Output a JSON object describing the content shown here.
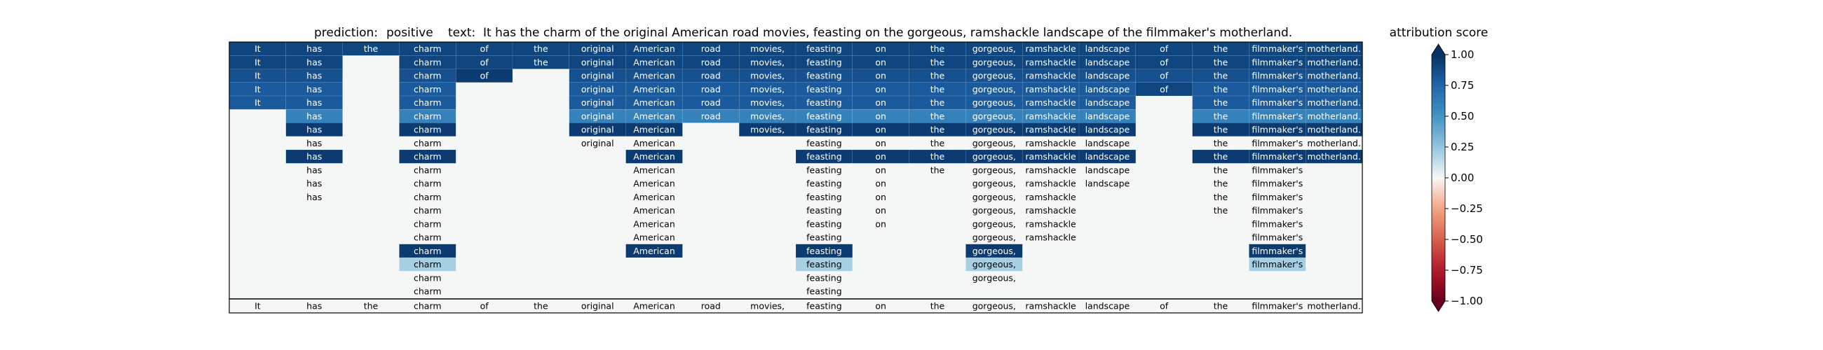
{
  "chart_data": {
    "type": "heatmap",
    "title": {
      "prediction_label": "prediction:",
      "prediction_value": "positive",
      "text_label": "text:",
      "text_value": "It has the charm of the original American road movies, feasting on the gorgeous, ramshackle landscape of the filmmaker's motherland."
    },
    "tokens": [
      "It",
      "has",
      "the",
      "charm",
      "of",
      "the",
      "original",
      "American",
      "road",
      "movies,",
      "feasting",
      "on",
      "the",
      "gorgeous,",
      "ramshackle",
      "landscape",
      "of",
      "the",
      "filmmaker's",
      "motherland."
    ],
    "rows": [
      {
        "visible": [
          1,
          1,
          1,
          1,
          1,
          1,
          1,
          1,
          1,
          1,
          1,
          1,
          1,
          1,
          1,
          1,
          1,
          1,
          1,
          1
        ],
        "scores": [
          0.9,
          0.9,
          0.9,
          0.9,
          0.9,
          0.9,
          0.9,
          0.9,
          0.9,
          0.9,
          0.9,
          0.9,
          0.9,
          0.9,
          0.9,
          0.9,
          0.9,
          0.9,
          0.9,
          0.9
        ]
      },
      {
        "visible": [
          1,
          1,
          0,
          1,
          1,
          1,
          1,
          1,
          1,
          1,
          1,
          1,
          1,
          1,
          1,
          1,
          1,
          1,
          1,
          1
        ],
        "scores": [
          0.9,
          0.9,
          0,
          0.9,
          0.9,
          0.9,
          0.9,
          0.9,
          0.9,
          0.9,
          0.9,
          0.9,
          0.9,
          0.9,
          0.9,
          0.9,
          0.9,
          0.9,
          0.9,
          0.9
        ]
      },
      {
        "visible": [
          1,
          1,
          0,
          1,
          1,
          0,
          1,
          1,
          1,
          1,
          1,
          1,
          1,
          1,
          1,
          1,
          1,
          1,
          1,
          1
        ],
        "scores": [
          0.85,
          0.85,
          0,
          0.85,
          0.95,
          0,
          0.85,
          0.85,
          0.85,
          0.85,
          0.85,
          0.85,
          0.85,
          0.85,
          0.85,
          0.85,
          0.85,
          0.85,
          0.85,
          0.85
        ]
      },
      {
        "visible": [
          1,
          1,
          0,
          1,
          0,
          0,
          1,
          1,
          1,
          1,
          1,
          1,
          1,
          1,
          1,
          1,
          1,
          1,
          1,
          1
        ],
        "scores": [
          0.8,
          0.8,
          0,
          0.8,
          0,
          0,
          0.8,
          0.8,
          0.8,
          0.8,
          0.8,
          0.8,
          0.8,
          0.8,
          0.8,
          0.8,
          0.9,
          0.8,
          0.8,
          0.8
        ]
      },
      {
        "visible": [
          1,
          1,
          0,
          1,
          0,
          0,
          1,
          1,
          1,
          1,
          1,
          1,
          1,
          1,
          1,
          1,
          0,
          1,
          1,
          1
        ],
        "scores": [
          0.8,
          0.8,
          0,
          0.8,
          0,
          0,
          0.8,
          0.8,
          0.8,
          0.8,
          0.8,
          0.8,
          0.8,
          0.8,
          0.8,
          0.8,
          0,
          0.8,
          0.8,
          0.8
        ]
      },
      {
        "visible": [
          0,
          1,
          0,
          1,
          0,
          0,
          1,
          1,
          1,
          1,
          1,
          1,
          1,
          1,
          1,
          1,
          0,
          1,
          1,
          1
        ],
        "scores": [
          0,
          0.6,
          0,
          0.6,
          0,
          0,
          0.6,
          0.6,
          0.6,
          0.6,
          0.6,
          0.6,
          0.6,
          0.6,
          0.6,
          0.6,
          0,
          0.6,
          0.6,
          0.6
        ]
      },
      {
        "visible": [
          0,
          1,
          0,
          1,
          0,
          0,
          1,
          1,
          0,
          1,
          1,
          1,
          1,
          1,
          1,
          1,
          0,
          1,
          1,
          1
        ],
        "scores": [
          0,
          0.95,
          0,
          0.95,
          0,
          0,
          0.95,
          0.95,
          0,
          0.95,
          0.95,
          0.95,
          0.95,
          0.95,
          0.95,
          0.95,
          0,
          0.95,
          0.95,
          0.95
        ]
      },
      {
        "visible": [
          0,
          1,
          0,
          1,
          0,
          0,
          1,
          1,
          0,
          0,
          1,
          1,
          1,
          1,
          1,
          1,
          0,
          1,
          1,
          1
        ],
        "scores": [
          0,
          0,
          0,
          0,
          0,
          0,
          0,
          0,
          0,
          0,
          0,
          0,
          0,
          0,
          0,
          0,
          0,
          0,
          0,
          0
        ]
      },
      {
        "visible": [
          0,
          1,
          0,
          1,
          0,
          0,
          0,
          1,
          0,
          0,
          1,
          1,
          1,
          1,
          1,
          1,
          0,
          1,
          1,
          1
        ],
        "scores": [
          0,
          0.95,
          0,
          0.95,
          0,
          0,
          0,
          0.95,
          0,
          0,
          0.95,
          0.95,
          0.95,
          0.95,
          0.95,
          0.95,
          0,
          0.95,
          0.95,
          0.95
        ]
      },
      {
        "visible": [
          0,
          1,
          0,
          1,
          0,
          0,
          0,
          1,
          0,
          0,
          1,
          1,
          1,
          1,
          1,
          1,
          0,
          1,
          1,
          0
        ],
        "scores": [
          0,
          0,
          0,
          0,
          0,
          0,
          0,
          0,
          0,
          0,
          0,
          0,
          0,
          0,
          0,
          0,
          0,
          0,
          0,
          0
        ]
      },
      {
        "visible": [
          0,
          1,
          0,
          1,
          0,
          0,
          0,
          1,
          0,
          0,
          1,
          1,
          0,
          1,
          1,
          1,
          0,
          1,
          1,
          0
        ],
        "scores": [
          0,
          0,
          0,
          0,
          0,
          0,
          0,
          0,
          0,
          0,
          0,
          0,
          0,
          0,
          0,
          0,
          0,
          0,
          0,
          0
        ]
      },
      {
        "visible": [
          0,
          1,
          0,
          1,
          0,
          0,
          0,
          1,
          0,
          0,
          1,
          1,
          0,
          1,
          1,
          0,
          0,
          1,
          1,
          0
        ],
        "scores": [
          0,
          0,
          0,
          0,
          0,
          0,
          0,
          0,
          0,
          0,
          0,
          0,
          0,
          0,
          0,
          0,
          0,
          0,
          0,
          0
        ]
      },
      {
        "visible": [
          0,
          0,
          0,
          1,
          0,
          0,
          0,
          1,
          0,
          0,
          1,
          1,
          0,
          1,
          1,
          0,
          0,
          1,
          1,
          0
        ],
        "scores": [
          0,
          0,
          0,
          0,
          0,
          0,
          0,
          0,
          0,
          0,
          0,
          0,
          0,
          0,
          0,
          0,
          0,
          0,
          0,
          0
        ]
      },
      {
        "visible": [
          0,
          0,
          0,
          1,
          0,
          0,
          0,
          1,
          0,
          0,
          1,
          1,
          0,
          1,
          1,
          0,
          0,
          0,
          1,
          0
        ],
        "scores": [
          0,
          0,
          0,
          0,
          0,
          0,
          0,
          0,
          0,
          0,
          0,
          0,
          0,
          0,
          0,
          0,
          0,
          0,
          0,
          0
        ]
      },
      {
        "visible": [
          0,
          0,
          0,
          1,
          0,
          0,
          0,
          1,
          0,
          0,
          1,
          0,
          0,
          1,
          1,
          0,
          0,
          0,
          1,
          0
        ],
        "scores": [
          0,
          0,
          0,
          0,
          0,
          0,
          0,
          0,
          0,
          0,
          0,
          0,
          0,
          0,
          0,
          0,
          0,
          0,
          0,
          0
        ]
      },
      {
        "visible": [
          0,
          0,
          0,
          1,
          0,
          0,
          0,
          1,
          0,
          0,
          1,
          0,
          0,
          1,
          0,
          0,
          0,
          0,
          1,
          0
        ],
        "scores": [
          0,
          0,
          0,
          0.95,
          0,
          0,
          0,
          0.95,
          0,
          0,
          0.95,
          0,
          0,
          0.95,
          0,
          0,
          0,
          0,
          0.95,
          0
        ]
      },
      {
        "visible": [
          0,
          0,
          0,
          1,
          0,
          0,
          0,
          0,
          0,
          0,
          1,
          0,
          0,
          1,
          0,
          0,
          0,
          0,
          1,
          0
        ],
        "scores": [
          0,
          0,
          0,
          0.2,
          0,
          0,
          0,
          0,
          0,
          0,
          0.2,
          0,
          0,
          0.2,
          0,
          0,
          0,
          0,
          0.2,
          0
        ]
      },
      {
        "visible": [
          0,
          0,
          0,
          1,
          0,
          0,
          0,
          0,
          0,
          0,
          1,
          0,
          0,
          1,
          0,
          0,
          0,
          0,
          0,
          0
        ],
        "scores": [
          0,
          0,
          0,
          0,
          0,
          0,
          0,
          0,
          0,
          0,
          0,
          0,
          0,
          0,
          0,
          0,
          0,
          0,
          0,
          0
        ]
      },
      {
        "visible": [
          0,
          0,
          0,
          1,
          0,
          0,
          0,
          0,
          0,
          0,
          1,
          0,
          0,
          0,
          0,
          0,
          0,
          0,
          0,
          0
        ],
        "scores": [
          0,
          0,
          0,
          0,
          0,
          0,
          0,
          0,
          0,
          0,
          0,
          0,
          0,
          0,
          0,
          0,
          0,
          0,
          0,
          0
        ]
      }
    ],
    "colorbar": {
      "title": "attribution score",
      "range": [
        -1.0,
        1.0
      ],
      "ticks": [
        1.0,
        0.75,
        0.5,
        0.25,
        0.0,
        -0.25,
        -0.5,
        -0.75,
        -1.0
      ],
      "tick_labels": [
        "1.00",
        "0.75",
        "0.50",
        "0.25",
        "0.00",
        "−0.25",
        "−0.50",
        "−0.75",
        "−1.00"
      ],
      "colormap": "RdBu",
      "extend": "both"
    }
  }
}
